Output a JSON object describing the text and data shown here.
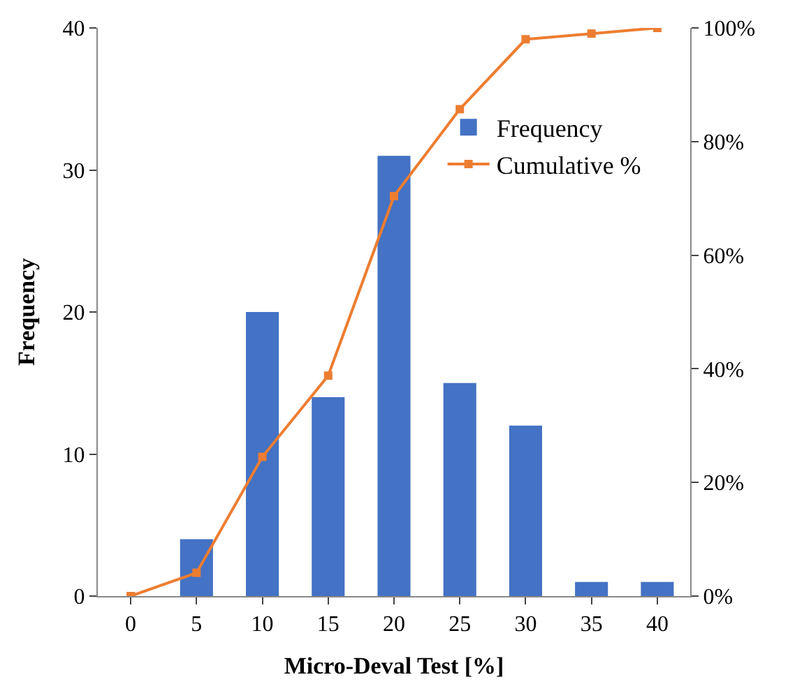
{
  "chart_data": {
    "type": "bar",
    "xlabel": "Micro-Deval Test [%]",
    "ylabel": "Frequency",
    "categories": [
      "0",
      "5",
      "10",
      "15",
      "20",
      "25",
      "30",
      "35",
      "40"
    ],
    "series": [
      {
        "name": "Frequency",
        "color": "#4472c4",
        "values": [
          0,
          4,
          20,
          14,
          31,
          15,
          12,
          1,
          1
        ]
      },
      {
        "name": "Cumulative %",
        "type": "line",
        "axis": "y2",
        "color": "#ed7d31",
        "marker": "square",
        "values": [
          0,
          4.1,
          24.5,
          38.8,
          70.4,
          85.7,
          98.0,
          99.0,
          100
        ]
      }
    ],
    "ylim": [
      0,
      40
    ],
    "yticks": [
      0,
      10,
      20,
      30,
      40
    ],
    "y2lim": [
      0,
      100
    ],
    "y2ticks": [
      {
        "value": 0,
        "label": "0%"
      },
      {
        "value": 20,
        "label": "20%"
      },
      {
        "value": 40,
        "label": "40%"
      },
      {
        "value": 60,
        "label": "60%"
      },
      {
        "value": 80,
        "label": "80%"
      },
      {
        "value": 100,
        "label": "100%"
      }
    ],
    "grid": false,
    "legend": "top right"
  }
}
